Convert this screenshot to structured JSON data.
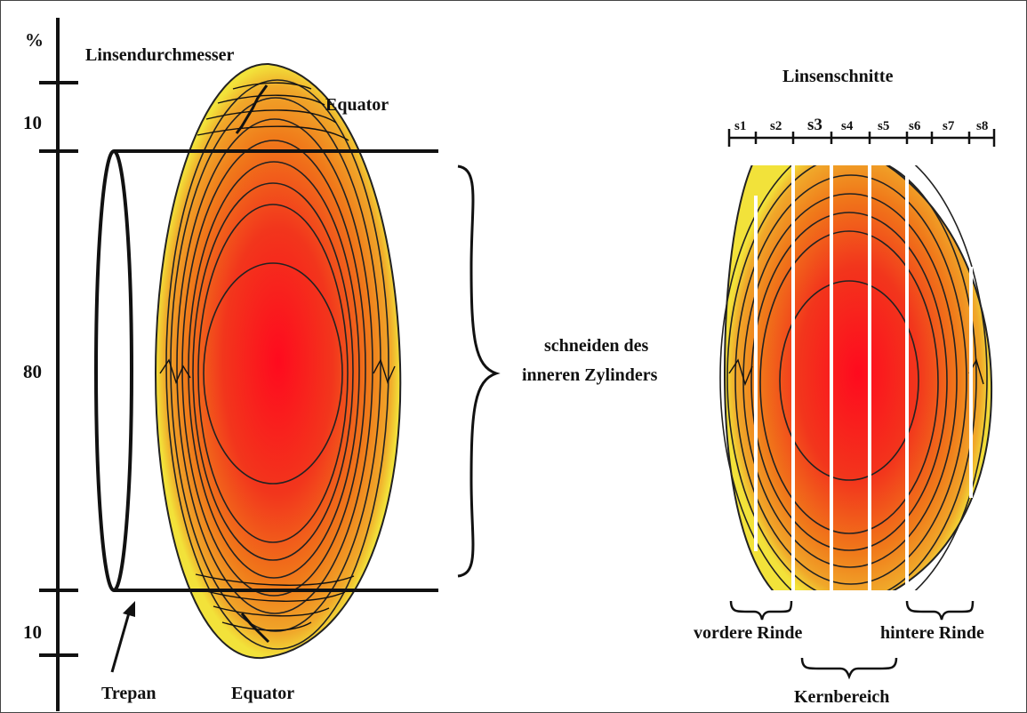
{
  "axis": {
    "unit": "%",
    "top_segment": "10",
    "middle_segment": "80",
    "bottom_segment": "10"
  },
  "left_labels": {
    "diameter": "Linsendurchmesser",
    "equator_top": "Equator",
    "equator_bottom": "Equator",
    "trepan": "Trepan"
  },
  "middle_label": {
    "line1": "schneiden des",
    "line2": "inneren Zylinders"
  },
  "right_labels": {
    "title": "Linsenschnitte",
    "sections": [
      "s1",
      "s2",
      "s3",
      "s4",
      "s5",
      "s6",
      "s7",
      "s8"
    ],
    "anterior": "vordere Rinde",
    "posterior": "hintere Rinde",
    "core": "Kernbereich"
  },
  "colors": {
    "lens_outer": "#f2e23a",
    "lens_mid": "#f08a1a",
    "lens_inner": "#f04a1c",
    "lens_core": "#ff0a1e",
    "line": "#111111"
  }
}
